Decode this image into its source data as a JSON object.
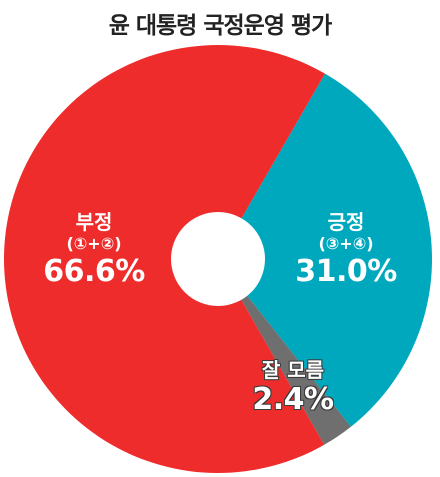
{
  "chart_data": {
    "type": "pie",
    "title": "윤 대통령 국정운영 평가",
    "slices": [
      {
        "name": "긍정",
        "detail": "(③+④)",
        "value": 31.0,
        "label": "31.0%",
        "color": "#00A8BE"
      },
      {
        "name": "잘 모름",
        "detail": "",
        "value": 2.4,
        "label": "2.4%",
        "color": "#6F6F6F"
      },
      {
        "name": "부정",
        "detail": "(①+②)",
        "value": 66.6,
        "label": "66.6%",
        "color": "#EE2C2C"
      }
    ],
    "donut": true
  }
}
